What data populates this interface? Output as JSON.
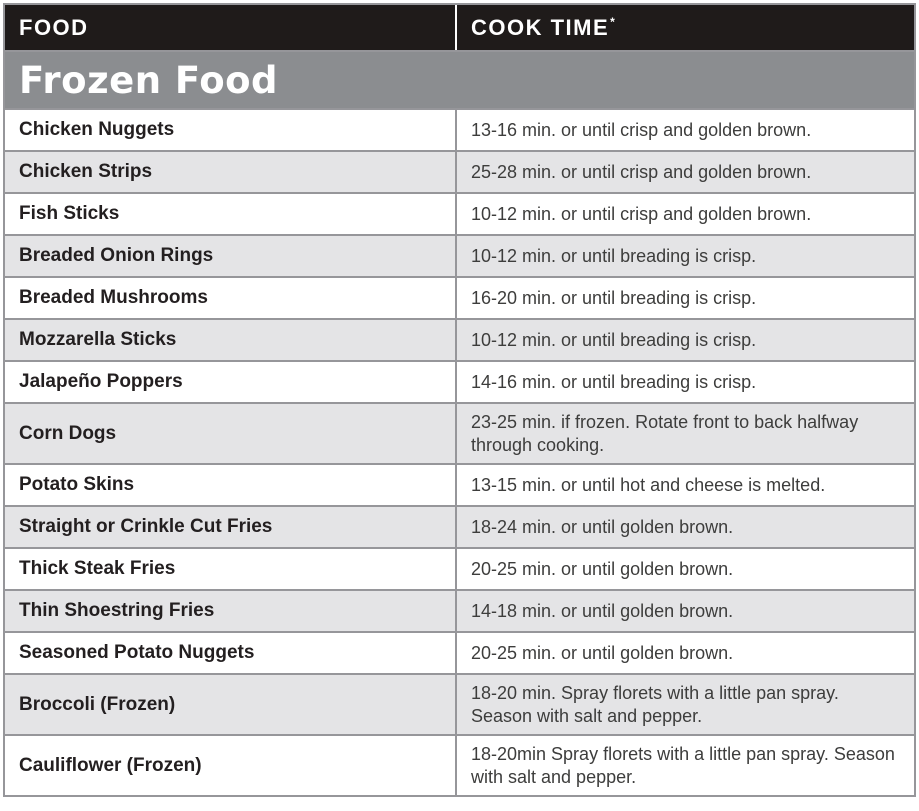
{
  "table": {
    "columns": {
      "food_label": "FOOD",
      "cook_time_label": "COOK TIME",
      "cook_time_footnote_mark": "*"
    },
    "section": {
      "title": "Frozen Food"
    },
    "rows": [
      {
        "food": "Chicken Nuggets",
        "time": "13-16 min. or until crisp and golden brown."
      },
      {
        "food": "Chicken Strips",
        "time": "25-28 min. or until crisp and golden brown."
      },
      {
        "food": "Fish Sticks",
        "time": "10-12 min. or until crisp and golden brown."
      },
      {
        "food": "Breaded Onion Rings",
        "time": "10-12 min. or until breading is crisp."
      },
      {
        "food": "Breaded Mushrooms",
        "time": "16-20 min. or until breading is crisp."
      },
      {
        "food": "Mozzarella Sticks",
        "time": "10-12 min. or until breading is crisp."
      },
      {
        "food": "Jalapeño Poppers",
        "time": "14-16 min. or until breading is crisp."
      },
      {
        "food": "Corn Dogs",
        "time": "23-25 min. if frozen. Rotate front to back halfway through cooking."
      },
      {
        "food": "Potato Skins",
        "time": "13-15 min. or until hot and cheese is melted."
      },
      {
        "food": "Straight or Crinkle Cut Fries",
        "time": "18-24 min. or until golden brown."
      },
      {
        "food": "Thick Steak Fries",
        "time": "20-25 min. or until golden brown."
      },
      {
        "food": "Thin Shoestring Fries",
        "time": "14-18 min. or until golden brown."
      },
      {
        "food": "Seasoned Potato Nuggets",
        "time": "20-25 min. or until golden brown."
      },
      {
        "food": "Broccoli (Frozen)",
        "time": "18-20 min. Spray florets with a little pan spray. Season with salt and pepper."
      },
      {
        "food": "Cauliflower (Frozen)",
        "time": "18-20min Spray florets with a little pan spray. Season with salt and pepper."
      }
    ],
    "colors": {
      "header_bg": "#1f1b1a",
      "section_bg": "#8b8d90",
      "row_alt_bg": "#e4e4e6",
      "border": "#96969a",
      "food_text": "#231f20",
      "time_text": "#3d3d3c"
    }
  }
}
